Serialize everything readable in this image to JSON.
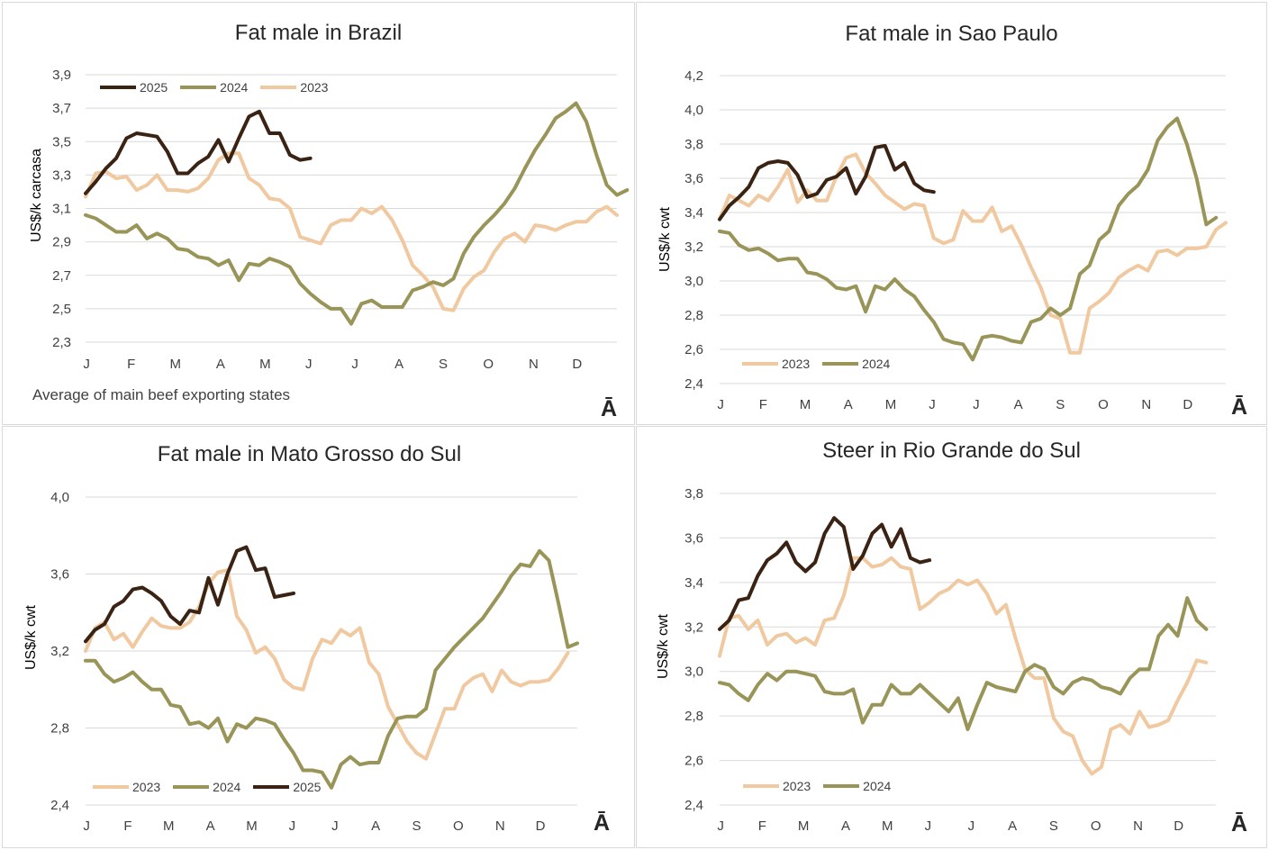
{
  "colors": {
    "2025": "#3b2314",
    "2024": "#999558",
    "2023": "#f0c9a0",
    "grid": "#d9d9d9",
    "text": "#404040"
  },
  "chart_data": [
    {
      "type": "line",
      "title": "Fat male in Brazil",
      "ylabel": "US$/k carcasa",
      "note": "Average of main beef exporting states",
      "logo": "Ā",
      "ylim": [
        2.3,
        3.9
      ],
      "yticks": [
        "2,3",
        "2,5",
        "2,7",
        "2,9",
        "3,1",
        "3,3",
        "3,5",
        "3,7",
        "3,9"
      ],
      "xticks": [
        "J",
        "F",
        "M",
        "A",
        "M",
        "J",
        "J",
        "A",
        "S",
        "O",
        "N",
        "D"
      ],
      "legend_order": [
        "2025",
        "2024",
        "2023"
      ],
      "series": [
        {
          "name": "2025",
          "values": [
            3.19,
            3.26,
            3.34,
            3.4,
            3.52,
            3.55,
            3.54,
            3.53,
            3.44,
            3.31,
            3.31,
            3.37,
            3.41,
            3.51,
            3.38,
            3.52,
            3.65,
            3.68,
            3.55,
            3.55,
            3.42,
            3.39,
            3.4
          ]
        },
        {
          "name": "2024",
          "values": [
            3.06,
            3.04,
            3.0,
            2.96,
            2.96,
            3.0,
            2.92,
            2.95,
            2.92,
            2.86,
            2.85,
            2.81,
            2.8,
            2.76,
            2.79,
            2.67,
            2.77,
            2.76,
            2.8,
            2.78,
            2.75,
            2.65,
            2.59,
            2.54,
            2.5,
            2.5,
            2.41,
            2.53,
            2.55,
            2.51,
            2.51,
            2.51,
            2.61,
            2.63,
            2.66,
            2.64,
            2.68,
            2.83,
            2.93,
            3.0,
            3.06,
            3.13,
            3.22,
            3.34,
            3.45,
            3.54,
            3.64,
            3.68,
            3.73,
            3.62,
            3.42,
            3.24,
            3.18,
            3.21
          ]
        },
        {
          "name": "2023",
          "values": [
            3.17,
            3.31,
            3.32,
            3.28,
            3.29,
            3.21,
            3.24,
            3.3,
            3.21,
            3.21,
            3.2,
            3.22,
            3.28,
            3.39,
            3.43,
            3.43,
            3.28,
            3.24,
            3.16,
            3.15,
            3.1,
            2.93,
            2.91,
            2.89,
            3.0,
            3.03,
            3.03,
            3.1,
            3.07,
            3.11,
            3.03,
            2.91,
            2.76,
            2.7,
            2.63,
            2.5,
            2.49,
            2.62,
            2.69,
            2.73,
            2.84,
            2.92,
            2.95,
            2.9,
            3.0,
            2.99,
            2.97,
            3.0,
            3.02,
            3.02,
            3.08,
            3.11,
            3.06
          ]
        }
      ]
    },
    {
      "type": "line",
      "title": "Fat male in Sao Paulo",
      "ylabel": "US$/k cwt",
      "logo": "Ā",
      "ylim": [
        2.4,
        4.2
      ],
      "yticks": [
        "2,4",
        "2,6",
        "2,8",
        "3,0",
        "3,2",
        "3,4",
        "3,6",
        "3,8",
        "4,0",
        "4,2"
      ],
      "xticks": [
        "J",
        "F",
        "M",
        "A",
        "M",
        "J",
        "J",
        "A",
        "S",
        "O",
        "N",
        "D"
      ],
      "legend_order": [
        "2023",
        "2024"
      ],
      "series": [
        {
          "name": "2025",
          "values": [
            3.36,
            3.44,
            3.49,
            3.55,
            3.66,
            3.69,
            3.7,
            3.69,
            3.62,
            3.49,
            3.51,
            3.59,
            3.61,
            3.66,
            3.51,
            3.61,
            3.78,
            3.79,
            3.65,
            3.69,
            3.57,
            3.53,
            3.52
          ]
        },
        {
          "name": "2024",
          "values": [
            3.29,
            3.28,
            3.21,
            3.18,
            3.19,
            3.16,
            3.12,
            3.13,
            3.13,
            3.05,
            3.04,
            3.01,
            2.96,
            2.95,
            2.97,
            2.82,
            2.97,
            2.95,
            3.01,
            2.95,
            2.91,
            2.83,
            2.76,
            2.66,
            2.64,
            2.63,
            2.54,
            2.67,
            2.68,
            2.67,
            2.65,
            2.64,
            2.76,
            2.78,
            2.84,
            2.8,
            2.84,
            3.04,
            3.09,
            3.24,
            3.29,
            3.44,
            3.51,
            3.56,
            3.65,
            3.82,
            3.9,
            3.95,
            3.8,
            3.6,
            3.33,
            3.37
          ]
        },
        {
          "name": "2023",
          "values": [
            3.36,
            3.5,
            3.47,
            3.44,
            3.5,
            3.47,
            3.55,
            3.65,
            3.46,
            3.53,
            3.47,
            3.47,
            3.61,
            3.72,
            3.74,
            3.63,
            3.57,
            3.5,
            3.46,
            3.42,
            3.45,
            3.44,
            3.25,
            3.22,
            3.24,
            3.41,
            3.35,
            3.35,
            3.43,
            3.29,
            3.32,
            3.21,
            3.08,
            2.96,
            2.8,
            2.78,
            2.58,
            2.58,
            2.84,
            2.88,
            2.93,
            3.02,
            3.06,
            3.09,
            3.06,
            3.17,
            3.18,
            3.15,
            3.19,
            3.19,
            3.2,
            3.3,
            3.34
          ]
        }
      ]
    },
    {
      "type": "line",
      "title": "Fat male in Mato Grosso do Sul",
      "ylabel": "US$/k cwt",
      "logo": "Ā",
      "ylim": [
        2.4,
        4.0
      ],
      "yticks": [
        "2,4",
        "2,8",
        "3,2",
        "3,6",
        "4,0"
      ],
      "xticks": [
        "J",
        "F",
        "M",
        "A",
        "M",
        "J",
        "J",
        "A",
        "S",
        "O",
        "N",
        "D"
      ],
      "legend_order": [
        "2023",
        "2024",
        "2025"
      ],
      "series": [
        {
          "name": "2025",
          "values": [
            3.25,
            3.31,
            3.34,
            3.43,
            3.46,
            3.52,
            3.53,
            3.5,
            3.46,
            3.38,
            3.34,
            3.41,
            3.4,
            3.58,
            3.44,
            3.6,
            3.72,
            3.74,
            3.62,
            3.63,
            3.48,
            3.49,
            3.5
          ]
        },
        {
          "name": "2024",
          "values": [
            3.15,
            3.15,
            3.08,
            3.04,
            3.06,
            3.09,
            3.04,
            3.0,
            3.0,
            2.92,
            2.91,
            2.82,
            2.83,
            2.8,
            2.85,
            2.73,
            2.82,
            2.8,
            2.85,
            2.84,
            2.82,
            2.74,
            2.67,
            2.58,
            2.58,
            2.57,
            2.49,
            2.61,
            2.65,
            2.61,
            2.62,
            2.62,
            2.76,
            2.85,
            2.86,
            2.86,
            2.9,
            3.1,
            3.16,
            3.22,
            3.27,
            3.32,
            3.37,
            3.44,
            3.51,
            3.59,
            3.65,
            3.64,
            3.72,
            3.67,
            3.45,
            3.22,
            3.24
          ]
        },
        {
          "name": "2023",
          "values": [
            3.2,
            3.32,
            3.35,
            3.26,
            3.29,
            3.22,
            3.3,
            3.37,
            3.33,
            3.32,
            3.32,
            3.35,
            3.43,
            3.55,
            3.61,
            3.62,
            3.38,
            3.31,
            3.19,
            3.22,
            3.16,
            3.05,
            3.01,
            3.0,
            3.16,
            3.26,
            3.24,
            3.31,
            3.28,
            3.32,
            3.14,
            3.08,
            2.91,
            2.82,
            2.73,
            2.67,
            2.64,
            2.77,
            2.9,
            2.9,
            3.02,
            3.06,
            3.08,
            2.99,
            3.1,
            3.04,
            3.02,
            3.04,
            3.04,
            3.05,
            3.11,
            3.19
          ]
        }
      ]
    },
    {
      "type": "line",
      "title": "Steer in Rio Grande do Sul",
      "ylabel": "US$/k cwt",
      "logo": "Ā",
      "ylim": [
        2.4,
        3.8
      ],
      "yticks": [
        "2,4",
        "2,6",
        "2,8",
        "3,0",
        "3,2",
        "3,4",
        "3,6",
        "3,8"
      ],
      "xticks": [
        "J",
        "F",
        "M",
        "A",
        "M",
        "J",
        "J",
        "A",
        "S",
        "O",
        "N",
        "D"
      ],
      "legend_order": [
        "2023",
        "2024"
      ],
      "series": [
        {
          "name": "2025",
          "values": [
            3.19,
            3.23,
            3.32,
            3.33,
            3.43,
            3.5,
            3.53,
            3.58,
            3.49,
            3.45,
            3.49,
            3.62,
            3.69,
            3.65,
            3.46,
            3.52,
            3.62,
            3.66,
            3.56,
            3.64,
            3.51,
            3.49,
            3.5
          ]
        },
        {
          "name": "2024",
          "values": [
            2.95,
            2.94,
            2.9,
            2.87,
            2.94,
            2.99,
            2.96,
            3.0,
            3.0,
            2.99,
            2.98,
            2.91,
            2.9,
            2.9,
            2.92,
            2.77,
            2.85,
            2.85,
            2.94,
            2.9,
            2.9,
            2.94,
            2.9,
            2.86,
            2.82,
            2.88,
            2.74,
            2.85,
            2.95,
            2.93,
            2.92,
            2.91,
            3.0,
            3.03,
            3.01,
            2.93,
            2.9,
            2.95,
            2.97,
            2.96,
            2.93,
            2.92,
            2.9,
            2.97,
            3.01,
            3.01,
            3.16,
            3.21,
            3.16,
            3.33,
            3.23,
            3.19
          ]
        },
        {
          "name": "2023",
          "values": [
            3.07,
            3.24,
            3.25,
            3.19,
            3.23,
            3.12,
            3.16,
            3.17,
            3.13,
            3.15,
            3.12,
            3.23,
            3.24,
            3.34,
            3.51,
            3.51,
            3.47,
            3.48,
            3.51,
            3.47,
            3.46,
            3.28,
            3.31,
            3.35,
            3.37,
            3.41,
            3.39,
            3.41,
            3.35,
            3.26,
            3.3,
            3.15,
            3.01,
            2.97,
            2.97,
            2.79,
            2.73,
            2.71,
            2.6,
            2.54,
            2.57,
            2.74,
            2.76,
            2.72,
            2.82,
            2.75,
            2.76,
            2.78,
            2.87,
            2.95,
            3.05,
            3.04
          ]
        }
      ]
    }
  ]
}
